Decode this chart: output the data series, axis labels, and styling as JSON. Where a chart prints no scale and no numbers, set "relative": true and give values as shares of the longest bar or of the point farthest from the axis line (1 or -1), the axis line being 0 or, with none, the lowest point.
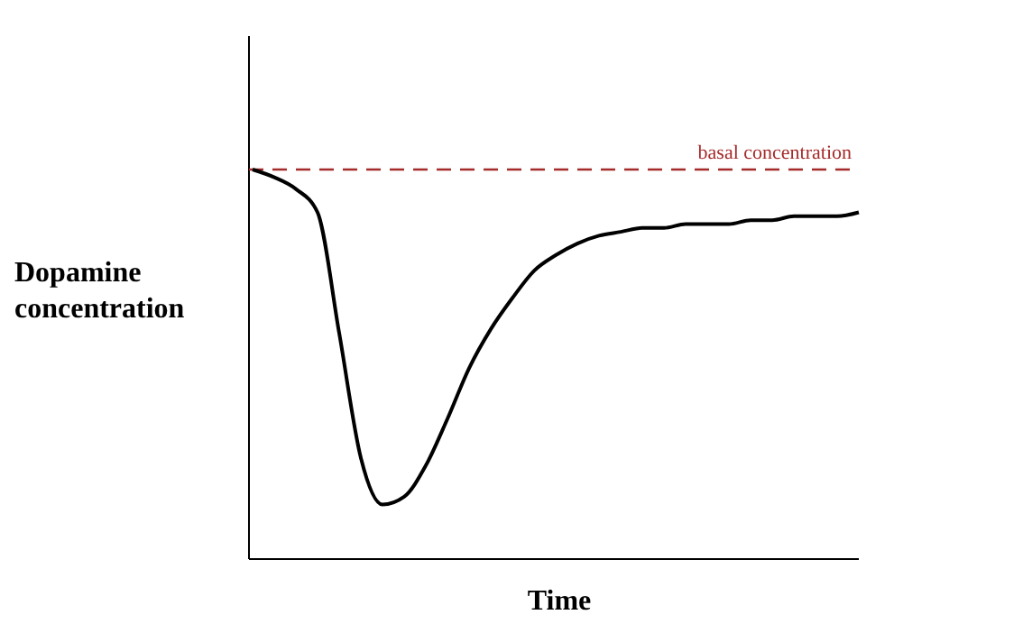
{
  "chart_data": {
    "type": "line",
    "relative": true,
    "xlabel": "Time",
    "ylabel": "Dopamine concentration",
    "categories": [
      null,
      null,
      null,
      null,
      null,
      null,
      null,
      null,
      null,
      null,
      null,
      null,
      null,
      null,
      null,
      null,
      null,
      null,
      null,
      null,
      null,
      null,
      null,
      null,
      null,
      null,
      null,
      null,
      null
    ],
    "series": [
      {
        "color": "#000000",
        "values": [
          1.0,
          0.98,
          0.95,
          0.89,
          0.58,
          0.26,
          0.14,
          0.16,
          0.24,
          0.36,
          0.49,
          0.59,
          0.67,
          0.74,
          0.78,
          0.81,
          0.83,
          0.84,
          0.85,
          0.85,
          0.86,
          0.86,
          0.86,
          0.87,
          0.87,
          0.88,
          0.88,
          0.88,
          0.89
        ]
      }
    ],
    "ref_lines": [
      {
        "axis": "y",
        "value": 1,
        "label": "basal concentration",
        "color": "#a52a2a",
        "line_style": "dashed"
      }
    ],
    "grid": false
  }
}
